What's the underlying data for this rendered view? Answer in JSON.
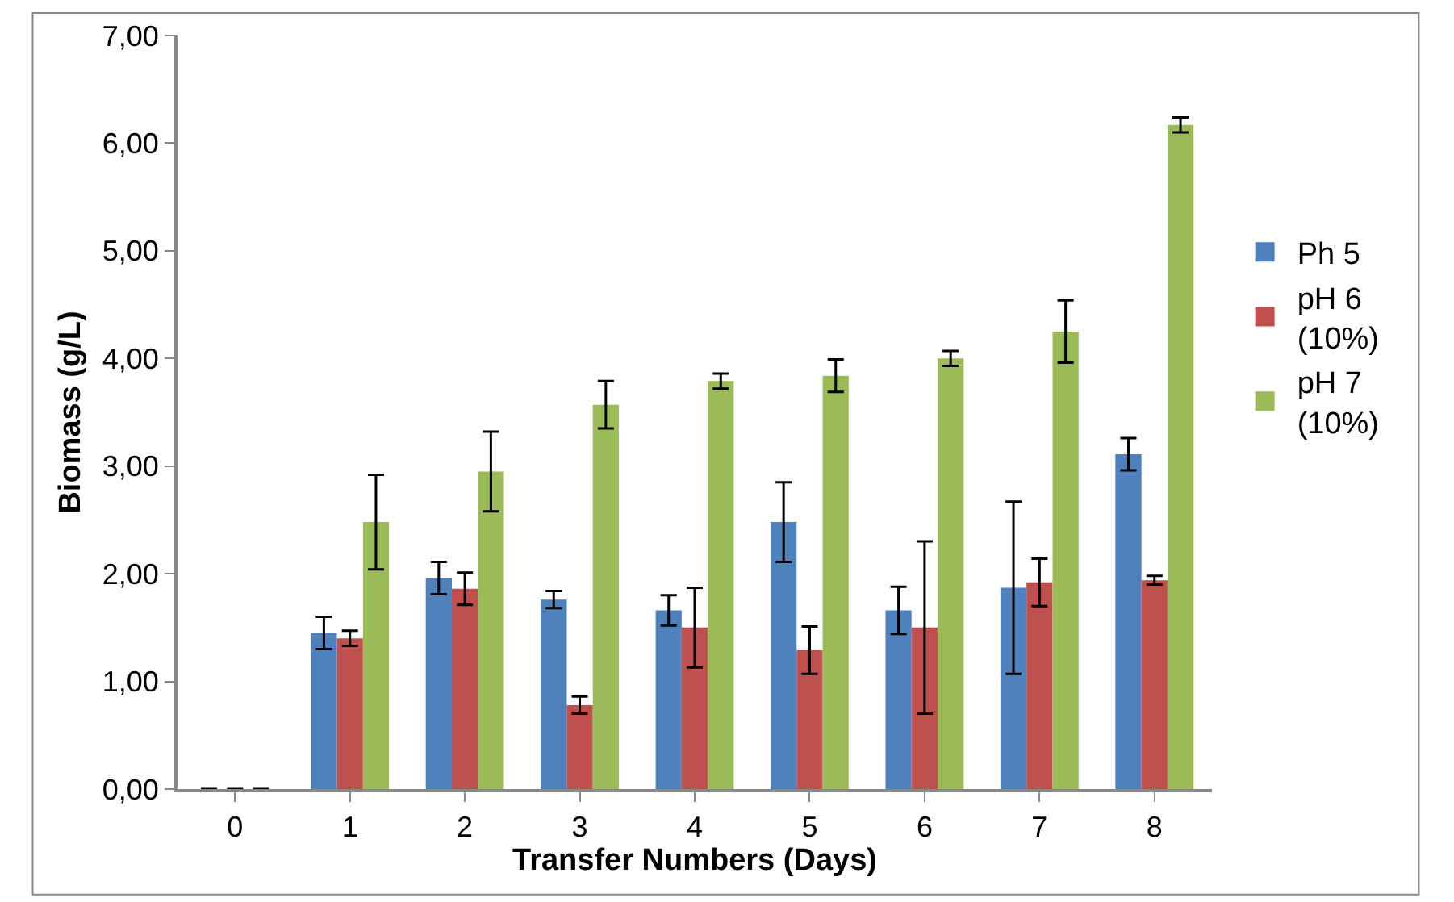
{
  "chart_data": {
    "type": "bar",
    "xlabel": "Transfer Numbers (Days)",
    "ylabel": "Biomass (g/L)",
    "categories": [
      "0",
      "1",
      "2",
      "3",
      "4",
      "5",
      "6",
      "7",
      "8"
    ],
    "series": [
      {
        "name": "Ph 5",
        "color": "#4f81bd",
        "values": [
          0,
          1.45,
          1.96,
          1.76,
          1.66,
          2.48,
          1.66,
          1.87,
          3.11
        ],
        "errors": [
          null,
          0.15,
          0.15,
          0.08,
          0.14,
          0.37,
          0.22,
          0.8,
          0.15
        ]
      },
      {
        "name": "pH 6 (10%)",
        "color": "#c0504d",
        "values": [
          0,
          1.4,
          1.86,
          0.78,
          1.5,
          1.29,
          1.5,
          1.92,
          1.94
        ],
        "errors": [
          null,
          0.07,
          0.15,
          0.08,
          0.37,
          0.22,
          0.8,
          0.22,
          0.04
        ]
      },
      {
        "name": "pH 7 (10%)",
        "color": "#9bbb59",
        "values": [
          0,
          2.48,
          2.95,
          3.57,
          3.79,
          3.84,
          4.0,
          4.25,
          6.17
        ],
        "errors": [
          null,
          0.44,
          0.37,
          0.22,
          0.07,
          0.15,
          0.07,
          0.29,
          0.07
        ]
      }
    ],
    "ylim": [
      0,
      7
    ],
    "yticks": [
      {
        "value": 0,
        "label": "0,00"
      },
      {
        "value": 1,
        "label": "1,00"
      },
      {
        "value": 2,
        "label": "2,00"
      },
      {
        "value": 3,
        "label": "3,00"
      },
      {
        "value": 4,
        "label": "4,00"
      },
      {
        "value": 5,
        "label": "5,00"
      },
      {
        "value": 6,
        "label": "6,00"
      },
      {
        "value": 7,
        "label": "7,00"
      }
    ],
    "legend": "right"
  }
}
